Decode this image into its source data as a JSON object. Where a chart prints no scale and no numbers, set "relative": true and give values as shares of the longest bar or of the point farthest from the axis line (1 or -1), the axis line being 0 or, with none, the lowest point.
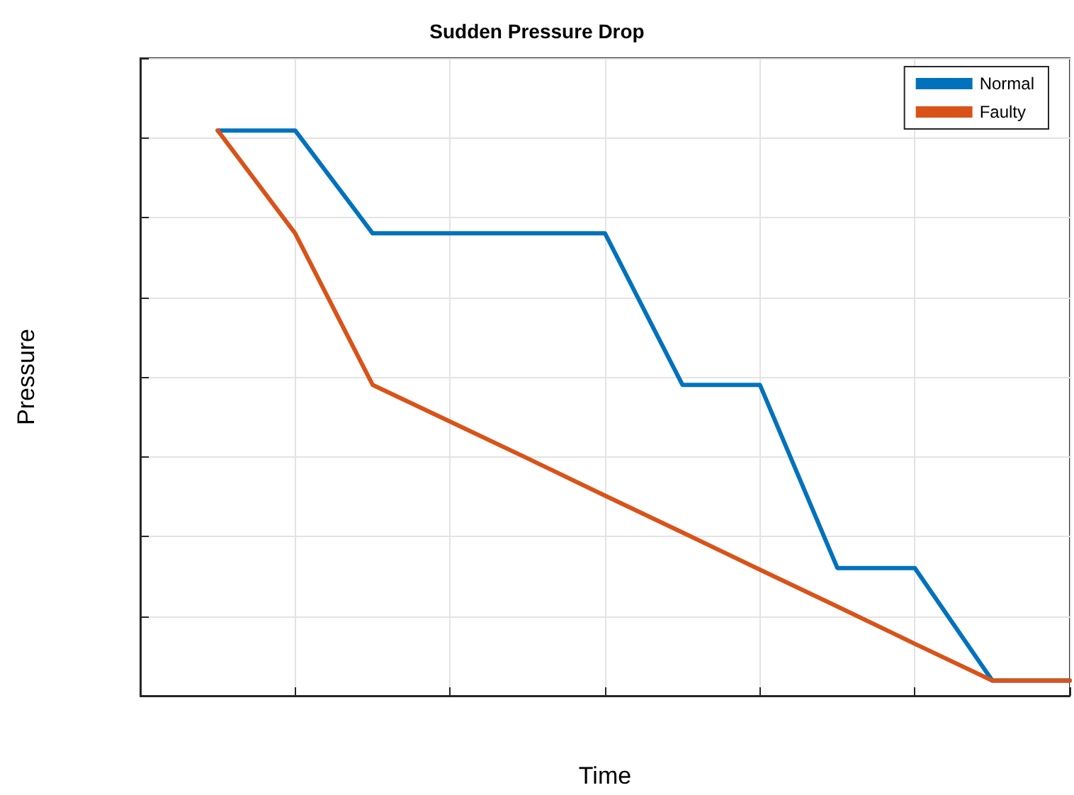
{
  "chart_data": {
    "type": "line",
    "title": "Sudden Pressure Drop",
    "xlabel": "Time",
    "ylabel": "Pressure",
    "categories": [
      null,
      null,
      null,
      null,
      null,
      null,
      null,
      null,
      null,
      null,
      null,
      null,
      null
    ],
    "series": [
      {
        "name": "Normal",
        "color": "#0072bd",
        "values": [
          null,
          1,
          1,
          0.818,
          0.818,
          0.818,
          0.818,
          0.55,
          0.55,
          0.226,
          0.226,
          0.027,
          0.027
        ]
      },
      {
        "name": "Faulty",
        "color": "#d95319",
        "values": [
          null,
          1,
          0.818,
          0.55,
          0.485,
          0.42,
          0.354,
          0.289,
          0.223,
          0.158,
          0.092,
          0.027,
          0.027
        ]
      }
    ],
    "relative": true,
    "grid": true,
    "legend": "top right",
    "marker": "none",
    "line_style": "solid"
  }
}
